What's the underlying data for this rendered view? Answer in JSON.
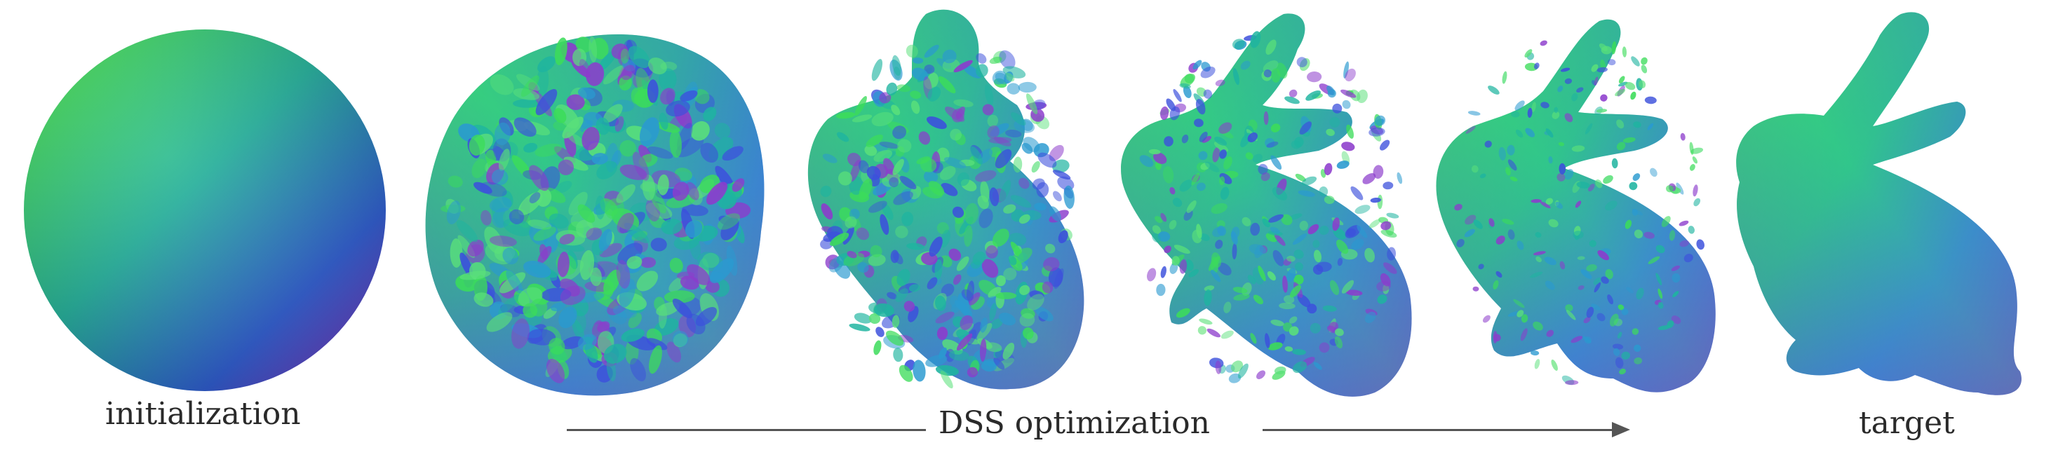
{
  "figure": {
    "stages": [
      {
        "id": "initialization",
        "label": "initialization"
      },
      {
        "id": "opt-1",
        "label": ""
      },
      {
        "id": "opt-2",
        "label": ""
      },
      {
        "id": "opt-3",
        "label": ""
      },
      {
        "id": "opt-4",
        "label": ""
      },
      {
        "id": "target",
        "label": "target"
      }
    ],
    "arrow_label": "DSS optimization",
    "colors": {
      "green": "#3cdc5a",
      "teal": "#1eb4a0",
      "blue": "#3c50dc",
      "purple": "#8c3ccc",
      "arrow": "#555555"
    }
  }
}
